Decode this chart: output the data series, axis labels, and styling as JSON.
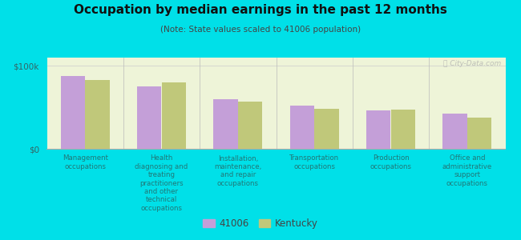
{
  "title": "Occupation by median earnings in the past 12 months",
  "subtitle": "(Note: State values scaled to 41006 population)",
  "background_outer": "#00e0e8",
  "background_inner_top": "#f5f8e8",
  "background_inner_bottom": "#e8f0d0",
  "categories": [
    "Management\noccupations",
    "Health\ndiagnosing and\ntreating\npractitioners\nand other\ntechnical\noccupations",
    "Installation,\nmaintenance,\nand repair\noccupations",
    "Transportation\noccupations",
    "Production\noccupations",
    "Office and\nadministrative\nsupport\noccupations"
  ],
  "values_41006": [
    88000,
    75000,
    60000,
    52000,
    46000,
    42000
  ],
  "values_kentucky": [
    83000,
    80000,
    57000,
    48000,
    47000,
    38000
  ],
  "color_41006": "#c49fd8",
  "color_kentucky": "#c0c87a",
  "ylim": [
    0,
    110000
  ],
  "ytick_labels": [
    "$0",
    "$100k"
  ],
  "legend_41006": "41006",
  "legend_kentucky": "Kentucky",
  "watermark": "Ⓡ City-Data.com"
}
